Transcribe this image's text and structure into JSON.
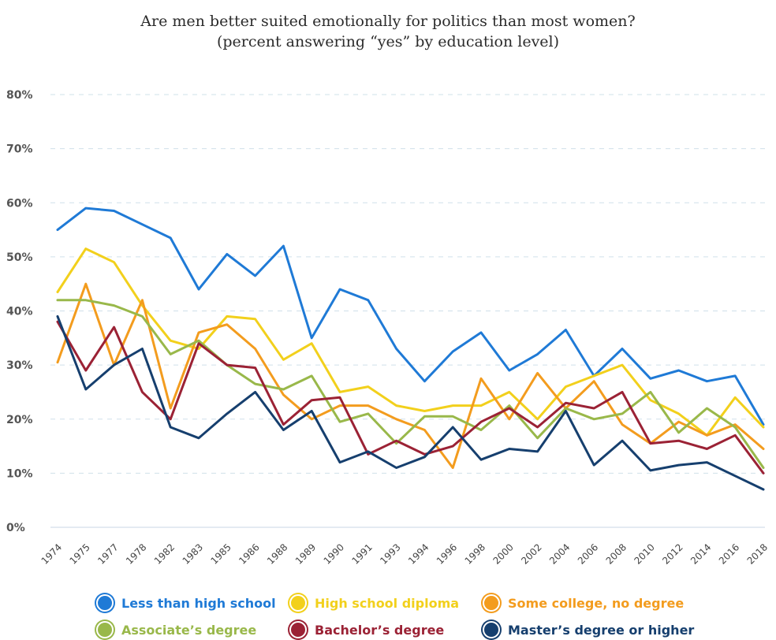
{
  "chart_data": {
    "type": "line",
    "title": "Are men better suited emotionally for politics than most women?",
    "subtitle": "(percent answering “yes” by education level)",
    "xlabel": "",
    "ylabel": "",
    "ylim": [
      0,
      80
    ],
    "yticks": [
      "0%",
      "10%",
      "20%",
      "30%",
      "40%",
      "50%",
      "60%",
      "70%",
      "80%"
    ],
    "grid": true,
    "legend_position": "bottom",
    "categories": [
      "1974",
      "1975",
      "1977",
      "1978",
      "1982",
      "1983",
      "1985",
      "1986",
      "1988",
      "1989",
      "1990",
      "1991",
      "1993",
      "1994",
      "1996",
      "1998",
      "2000",
      "2002",
      "2004",
      "2006",
      "2008",
      "2010",
      "2012",
      "2014",
      "2016",
      "2018"
    ],
    "series": [
      {
        "name": "Less than high school",
        "color": "#1f7ad6",
        "values": [
          55,
          59,
          58.5,
          56,
          53.5,
          44,
          50.5,
          46.5,
          52,
          35,
          44,
          42,
          33,
          27,
          32.5,
          36,
          29,
          32,
          36.5,
          28,
          33,
          27.5,
          29,
          27,
          28,
          19
        ]
      },
      {
        "name": "High school diploma",
        "color": "#f2d01c",
        "values": [
          43.5,
          51.5,
          49,
          41,
          34.5,
          33,
          39,
          38.5,
          31,
          34,
          25,
          26,
          22.5,
          21.5,
          22.5,
          22.5,
          25,
          20,
          26,
          28,
          30,
          23.5,
          21,
          17,
          24,
          18.5
        ]
      },
      {
        "name": "Some college, no degree",
        "color": "#f39c1e",
        "values": [
          30.5,
          45,
          30,
          42,
          22,
          36,
          37.5,
          33,
          24.5,
          20,
          22.5,
          22.5,
          20,
          18,
          11,
          27.5,
          20,
          28.5,
          22,
          27,
          19,
          15.5,
          19.5,
          17,
          19,
          14.5
        ]
      },
      {
        "name": "Associate’s degree",
        "color": "#99b84a",
        "values": [
          42,
          42,
          41,
          39,
          32,
          34.5,
          30,
          26.5,
          25.5,
          28,
          19.5,
          21,
          15.5,
          20.5,
          20.5,
          18,
          22.5,
          16.5,
          22,
          20,
          21,
          25,
          17.5,
          22,
          18.5,
          11
        ]
      },
      {
        "name": "Bachelor’s degree",
        "color": "#9b2235",
        "values": [
          38,
          29,
          37,
          25,
          20,
          34,
          30,
          29.5,
          19,
          23.5,
          24,
          13.5,
          16,
          13.5,
          15,
          19.5,
          22,
          18.5,
          23,
          22,
          25,
          15.5,
          16,
          14.5,
          17,
          10
        ]
      },
      {
        "name": "Master’s degree or higher",
        "color": "#163f6e",
        "values": [
          39,
          25.5,
          30,
          33,
          18.5,
          16.5,
          21,
          25,
          18,
          21.5,
          12,
          14,
          11,
          13,
          18.5,
          12.5,
          14.5,
          14,
          21.5,
          11.5,
          16,
          10.5,
          11.5,
          12,
          9.5,
          7
        ]
      }
    ]
  }
}
